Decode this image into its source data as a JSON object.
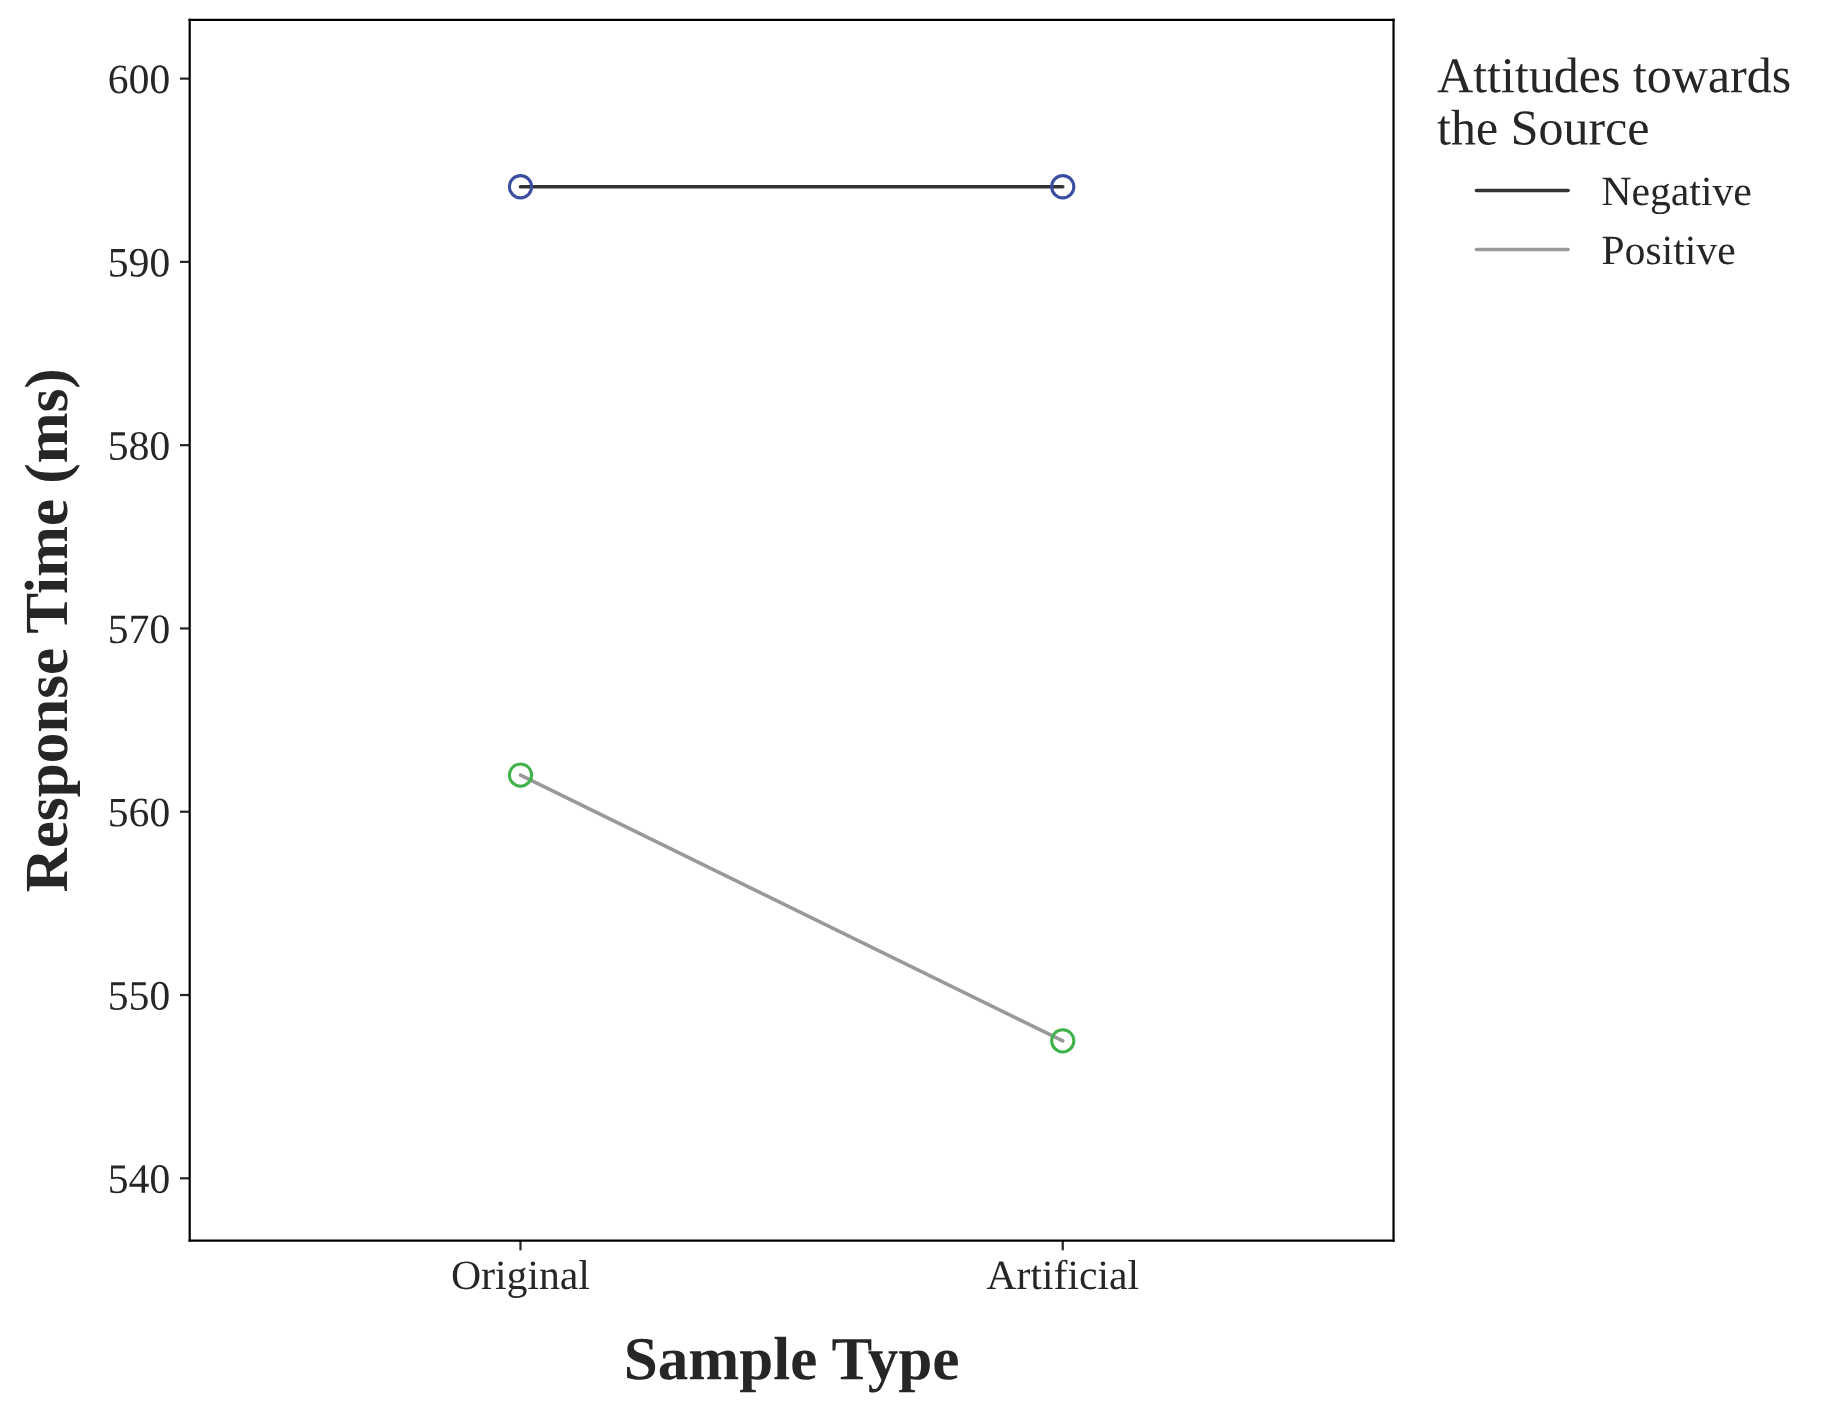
{
  "chart_data": {
    "type": "line",
    "xlabel": "Sample Type",
    "ylabel": "Response Time (ms)",
    "legend_title": "Attitudes towards\nthe Source",
    "categories": [
      "Original",
      "Artificial"
    ],
    "series": [
      {
        "name": "Negative",
        "color": "#333333",
        "colors": [
          "#3a4ea0",
          "#3a4ea0"
        ],
        "values": [
          594.1,
          594.1
        ]
      },
      {
        "name": "Positive",
        "color": "#999999",
        "colors": [
          "#3fb24a",
          "#3fb24a"
        ],
        "values": [
          562.0,
          547.5
        ]
      }
    ],
    "ylim": [
      536.6,
      603.2
    ],
    "yticks": [
      540,
      550,
      560,
      570,
      580,
      590,
      600
    ],
    "marker": "circle",
    "line_style": "solid",
    "grid": false,
    "legend": "top right"
  }
}
